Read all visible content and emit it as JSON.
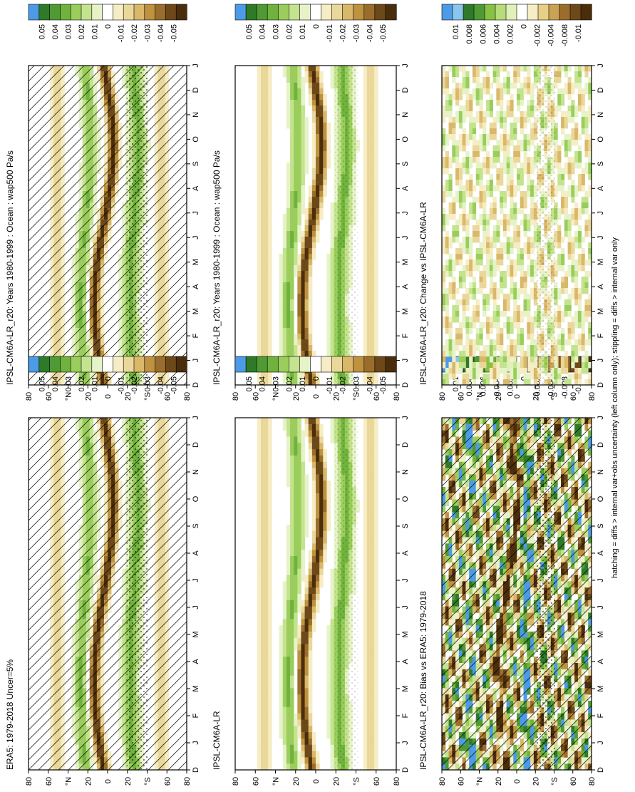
{
  "footer": "hatching = diffs > internal var+obs uncertainty (left column only); stippling = diffs > internal var only",
  "colors": {
    "neg_strong": "#5a3a12",
    "neg_mid": "#b88a3a",
    "neg_weak": "#efe1a8",
    "zero": "#ffffff",
    "pos_weak": "#cfe89a",
    "pos_mid": "#86c244",
    "pos_strong": "#2f7a28",
    "pos_extreme": "#4d9be6"
  },
  "chart_data": [
    {
      "type": "heatmap",
      "title": "IPSL-CM6A-LR_r20: Years 1980-1999 : Ocean : wap500 Pa/s",
      "x": [
        "D",
        "J",
        "F",
        "M",
        "A",
        "M",
        "J",
        "J",
        "A",
        "S",
        "O",
        "N",
        "D",
        "J"
      ],
      "y": [
        "80",
        "60",
        "°N",
        "20",
        "0",
        "20",
        "°S",
        "60",
        "80"
      ],
      "colorbar": [
        "0.05",
        "0.04",
        "0.03",
        "0.02",
        "0.01",
        "0",
        "-0.01",
        "-0.02",
        "-0.03",
        "-0.04",
        "-0.05"
      ],
      "hatching": true,
      "stippling": true
    },
    {
      "type": "heatmap",
      "title": "IPSL-CM6A-LR_r20: Years 1980-1999 : Ocean : wap500 Pa/s",
      "x": [
        "D",
        "J",
        "F",
        "M",
        "A",
        "M",
        "J",
        "J",
        "A",
        "S",
        "O",
        "N",
        "D",
        "J"
      ],
      "y": [
        "80",
        "60",
        "°N",
        "20",
        "0",
        "20",
        "°S",
        "60",
        "80"
      ],
      "colorbar": [
        "0.05",
        "0.04",
        "0.03",
        "0.02",
        "0.01",
        "0",
        "-0.01",
        "-0.02",
        "-0.03",
        "-0.04",
        "-0.05"
      ],
      "hatching": false,
      "stippling": true
    },
    {
      "type": "heatmap",
      "title": "ERA5: 1979-2018 Uncer=5%",
      "x": [
        "D",
        "J",
        "F",
        "M",
        "A",
        "M",
        "J",
        "J",
        "A",
        "S",
        "O",
        "N",
        "D",
        "J"
      ],
      "y": [
        "80",
        "60",
        "°N",
        "20",
        "0",
        "20",
        "°S",
        "60",
        "80"
      ],
      "colorbar": [
        "0.05",
        "0.04",
        "0.03",
        "0.02",
        "0.01",
        "0",
        "-0.01",
        "-0.02",
        "-0.03",
        "-0.04",
        "-0.05"
      ],
      "hatching": true,
      "stippling": true
    },
    {
      "type": "heatmap",
      "title": "IPSL-CM6A-LR",
      "x": [
        "D",
        "J",
        "F",
        "M",
        "A",
        "M",
        "J",
        "J",
        "A",
        "S",
        "O",
        "N",
        "D",
        "J"
      ],
      "y": [
        "80",
        "60",
        "°N",
        "20",
        "0",
        "20",
        "°S",
        "60",
        "80"
      ],
      "colorbar": [
        "0.05",
        "0.04",
        "0.03",
        "0.02",
        "0.01",
        "0",
        "-0.01",
        "-0.02",
        "-0.03",
        "-0.04",
        "-0.05"
      ],
      "hatching": false,
      "stippling": true
    },
    {
      "type": "heatmap",
      "title": "IPSL-CM6A-LR_r20: Bias vs ERA5: 1979-2018",
      "x": [
        "D",
        "J",
        "F",
        "M",
        "A",
        "M",
        "J",
        "J",
        "A",
        "S",
        "O",
        "N",
        "D",
        "J"
      ],
      "y": [
        "80",
        "60",
        "°N",
        "20",
        "0",
        "20",
        "°S",
        "60",
        "80"
      ],
      "colorbar": [
        "0.01",
        "0.008",
        "0.006",
        "0.004",
        "0.002",
        "0",
        "-0.002",
        "-0.004",
        "-0.008",
        "-0.01"
      ],
      "hatching": true,
      "stippling": true
    },
    {
      "type": "heatmap",
      "title": "IPSL-CM6A-LR_r20: Change vs IPSL-CM6A-LR",
      "x": [
        "D",
        "J",
        "F",
        "M",
        "A",
        "M",
        "J",
        "J",
        "A",
        "S",
        "O",
        "N",
        "D",
        "J"
      ],
      "y": [
        "80",
        "60",
        "°N",
        "20",
        "0",
        "20",
        "°S",
        "60",
        "80"
      ],
      "colorbar": [
        "0.01",
        "0.008",
        "0.006",
        "0.004",
        "0.002",
        "0",
        "-0.002",
        "-0.004",
        "-0.008",
        "-0.01"
      ],
      "hatching": false,
      "stippling": true
    }
  ]
}
